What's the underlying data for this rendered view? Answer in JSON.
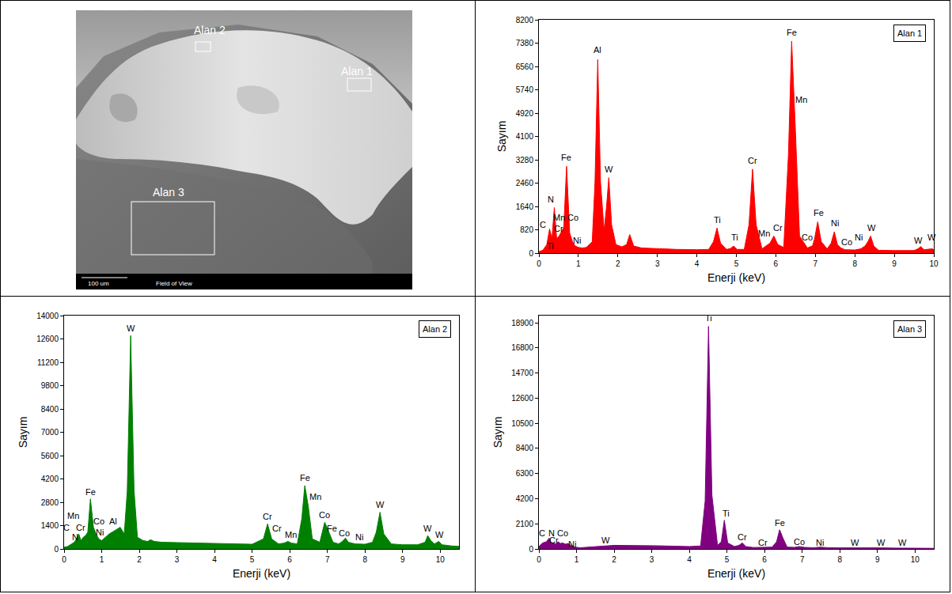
{
  "image_panel": {
    "areas": [
      "Alan 2",
      "Alan 1",
      "Alan 3"
    ],
    "scale_bar": "100 um",
    "caption": "Field of View"
  },
  "chart_data": [
    {
      "type": "area",
      "title": "Alan 1",
      "x_label": "Enerji (keV)",
      "y_label": "Sayım",
      "color": "#ff0000",
      "grid": false,
      "xlim": [
        0,
        10
      ],
      "xticks": [
        0,
        1,
        2,
        3,
        4,
        5,
        6,
        7,
        8,
        9,
        10
      ],
      "ylim": [
        0,
        8200
      ],
      "yticks": [
        0,
        820,
        1640,
        2460,
        3280,
        4100,
        4920,
        5740,
        6560,
        7380,
        8200
      ],
      "x": [
        0,
        0.1,
        0.2,
        0.27,
        0.33,
        0.39,
        0.45,
        0.51,
        0.57,
        0.63,
        0.7,
        0.78,
        0.85,
        0.92,
        1.0,
        1.1,
        1.2,
        1.35,
        1.42,
        1.49,
        1.56,
        1.65,
        1.71,
        1.77,
        1.84,
        1.95,
        2.1,
        2.22,
        2.3,
        2.4,
        2.6,
        3.0,
        3.5,
        4.0,
        4.3,
        4.42,
        4.51,
        4.6,
        4.75,
        4.85,
        4.93,
        5.02,
        5.2,
        5.32,
        5.41,
        5.5,
        5.65,
        5.85,
        5.95,
        6.05,
        6.2,
        6.32,
        6.4,
        6.49,
        6.6,
        6.8,
        6.93,
        6.98,
        7.06,
        7.15,
        7.3,
        7.4,
        7.48,
        7.56,
        7.65,
        7.75,
        8.0,
        8.15,
        8.26,
        8.33,
        8.4,
        8.48,
        8.6,
        9.0,
        9.5,
        9.6,
        9.67,
        9.75,
        9.9,
        9.96,
        10.0
      ],
      "values": [
        50,
        100,
        300,
        850,
        500,
        1600,
        500,
        600,
        750,
        900,
        3050,
        700,
        400,
        250,
        200,
        180,
        200,
        400,
        2500,
        6800,
        2500,
        800,
        1600,
        2650,
        1000,
        300,
        220,
        300,
        650,
        250,
        180,
        150,
        130,
        120,
        130,
        400,
        880,
        350,
        130,
        160,
        250,
        130,
        130,
        1000,
        2950,
        1000,
        150,
        350,
        600,
        300,
        200,
        3500,
        7450,
        4500,
        600,
        180,
        260,
        500,
        1100,
        400,
        150,
        350,
        750,
        300,
        180,
        120,
        110,
        150,
        250,
        400,
        600,
        250,
        100,
        90,
        90,
        150,
        230,
        120,
        130,
        150,
        120
      ],
      "annotations": [
        {
          "text": "C",
          "x": 0.1,
          "y": 1000
        },
        {
          "text": "N",
          "x": 0.3,
          "y": 1900
        },
        {
          "text": "Ti",
          "x": 0.3,
          "y": 250
        },
        {
          "text": "Mn",
          "x": 0.52,
          "y": 1250
        },
        {
          "text": "Cr",
          "x": 0.5,
          "y": 850
        },
        {
          "text": "Co",
          "x": 0.86,
          "y": 1250
        },
        {
          "text": "Ni",
          "x": 0.97,
          "y": 450
        },
        {
          "text": "Fe",
          "x": 0.7,
          "y": 3350
        },
        {
          "text": "Al",
          "x": 1.49,
          "y": 7150
        },
        {
          "text": "W",
          "x": 1.77,
          "y": 2950
        },
        {
          "text": "Ti",
          "x": 4.51,
          "y": 1180
        },
        {
          "text": "Ti",
          "x": 4.95,
          "y": 550
        },
        {
          "text": "Cr",
          "x": 5.41,
          "y": 3250
        },
        {
          "text": "Mn",
          "x": 5.7,
          "y": 700
        },
        {
          "text": "Cr",
          "x": 6.05,
          "y": 900
        },
        {
          "text": "Fe",
          "x": 6.4,
          "y": 7750
        },
        {
          "text": "Mn",
          "x": 6.64,
          "y": 5400
        },
        {
          "text": "Fe",
          "x": 7.08,
          "y": 1420
        },
        {
          "text": "Co",
          "x": 6.8,
          "y": 550
        },
        {
          "text": "Ni",
          "x": 7.5,
          "y": 1050
        },
        {
          "text": "Co",
          "x": 7.8,
          "y": 380
        },
        {
          "text": "Ni",
          "x": 8.1,
          "y": 550
        },
        {
          "text": "W",
          "x": 8.42,
          "y": 900
        },
        {
          "text": "W",
          "x": 9.6,
          "y": 450
        },
        {
          "text": "W",
          "x": 9.95,
          "y": 550
        }
      ]
    },
    {
      "type": "area",
      "title": "Alan 2",
      "x_label": "Enerji (keV)",
      "y_label": "Sayım",
      "color": "#008000",
      "grid": false,
      "xlim": [
        0,
        10.5
      ],
      "xticks": [
        0,
        1,
        2,
        3,
        4,
        5,
        6,
        7,
        8,
        9,
        10
      ],
      "ylim": [
        0,
        14000
      ],
      "yticks": [
        0,
        1400,
        2800,
        4200,
        5600,
        7000,
        8400,
        9800,
        11200,
        12600,
        14000
      ],
      "x": [
        0,
        0.1,
        0.2,
        0.27,
        0.33,
        0.39,
        0.45,
        0.51,
        0.57,
        0.63,
        0.7,
        0.78,
        0.85,
        0.92,
        1.0,
        1.1,
        1.2,
        1.35,
        1.49,
        1.6,
        1.68,
        1.77,
        1.86,
        1.95,
        2.1,
        2.22,
        2.3,
        2.4,
        2.6,
        3.0,
        3.5,
        4.0,
        4.5,
        5.0,
        5.3,
        5.41,
        5.52,
        5.7,
        5.85,
        5.95,
        6.05,
        6.2,
        6.32,
        6.4,
        6.49,
        6.6,
        6.8,
        6.93,
        7.06,
        7.15,
        7.3,
        7.4,
        7.48,
        7.56,
        7.65,
        7.75,
        8.0,
        8.2,
        8.3,
        8.4,
        8.5,
        8.7,
        9.0,
        9.4,
        9.6,
        9.67,
        9.75,
        9.85,
        9.96,
        10.05,
        10.3,
        10.5
      ],
      "values": [
        100,
        150,
        300,
        400,
        600,
        900,
        500,
        700,
        800,
        1000,
        3000,
        1300,
        900,
        600,
        500,
        700,
        900,
        1100,
        1300,
        900,
        3500,
        12800,
        3500,
        700,
        500,
        450,
        550,
        450,
        400,
        380,
        350,
        330,
        300,
        280,
        600,
        1500,
        600,
        300,
        350,
        450,
        350,
        300,
        1800,
        3800,
        2600,
        600,
        400,
        1600,
        900,
        400,
        300,
        450,
        650,
        400,
        350,
        300,
        280,
        400,
        1000,
        2200,
        900,
        300,
        250,
        250,
        400,
        800,
        500,
        300,
        450,
        250,
        180,
        150
      ],
      "annotations": [
        {
          "text": "C",
          "x": 0.06,
          "y": 1300
        },
        {
          "text": "Mn",
          "x": 0.25,
          "y": 2000
        },
        {
          "text": "Cr",
          "x": 0.44,
          "y": 1300
        },
        {
          "text": "N",
          "x": 0.3,
          "y": 700
        },
        {
          "text": "Fe",
          "x": 0.7,
          "y": 3400
        },
        {
          "text": "Co",
          "x": 0.93,
          "y": 1650
        },
        {
          "text": "Ni",
          "x": 0.95,
          "y": 1000
        },
        {
          "text": "Al",
          "x": 1.3,
          "y": 1650
        },
        {
          "text": "W",
          "x": 1.77,
          "y": 13250
        },
        {
          "text": "Cr",
          "x": 5.41,
          "y": 1950
        },
        {
          "text": "Cr",
          "x": 5.65,
          "y": 1250
        },
        {
          "text": "Mn",
          "x": 6.02,
          "y": 850
        },
        {
          "text": "Fe",
          "x": 6.4,
          "y": 4250
        },
        {
          "text": "Mn",
          "x": 6.68,
          "y": 3150
        },
        {
          "text": "Co",
          "x": 6.93,
          "y": 2050
        },
        {
          "text": "Fe",
          "x": 7.12,
          "y": 1250
        },
        {
          "text": "Co",
          "x": 7.45,
          "y": 950
        },
        {
          "text": "Ni",
          "x": 7.85,
          "y": 700
        },
        {
          "text": "W",
          "x": 8.4,
          "y": 2650
        },
        {
          "text": "W",
          "x": 9.67,
          "y": 1250
        },
        {
          "text": "W",
          "x": 9.98,
          "y": 850
        }
      ]
    },
    {
      "type": "area",
      "title": "Alan 3",
      "x_label": "Enerji (keV)",
      "y_label": "Sayım",
      "color": "#800080",
      "grid": false,
      "xlim": [
        0,
        10.5
      ],
      "xticks": [
        0,
        1,
        2,
        3,
        4,
        5,
        6,
        7,
        8,
        9,
        10
      ],
      "ylim": [
        0,
        19500
      ],
      "yticks": [
        0,
        2100,
        4200,
        6300,
        8400,
        10500,
        12600,
        14700,
        16800,
        18900
      ],
      "x": [
        0,
        0.1,
        0.2,
        0.27,
        0.33,
        0.39,
        0.45,
        0.51,
        0.57,
        0.63,
        0.7,
        0.78,
        0.85,
        0.95,
        1.1,
        1.3,
        1.6,
        1.77,
        2.0,
        2.4,
        2.8,
        3.2,
        3.6,
        4.0,
        4.3,
        4.42,
        4.51,
        4.6,
        4.75,
        4.85,
        4.93,
        5.02,
        5.2,
        5.32,
        5.41,
        5.5,
        5.7,
        5.95,
        6.2,
        6.32,
        6.4,
        6.49,
        6.6,
        6.8,
        6.93,
        7.06,
        7.3,
        7.48,
        7.7,
        8.0,
        8.4,
        8.8,
        9.1,
        9.5,
        9.67,
        10.0,
        10.5
      ],
      "values": [
        200,
        500,
        600,
        900,
        500,
        500,
        400,
        600,
        450,
        500,
        400,
        450,
        300,
        150,
        100,
        150,
        250,
        250,
        300,
        300,
        300,
        260,
        230,
        200,
        250,
        4000,
        18600,
        4500,
        300,
        600,
        2400,
        500,
        200,
        300,
        500,
        200,
        120,
        150,
        150,
        600,
        1600,
        900,
        150,
        130,
        200,
        130,
        100,
        150,
        100,
        90,
        100,
        80,
        90,
        70,
        80,
        60,
        50
      ],
      "annotations": [
        {
          "text": "C",
          "x": 0.08,
          "y": 1350
        },
        {
          "text": "N",
          "x": 0.33,
          "y": 1350
        },
        {
          "text": "Cr",
          "x": 0.4,
          "y": 700
        },
        {
          "text": "Co",
          "x": 0.64,
          "y": 1350
        },
        {
          "text": "Ni",
          "x": 0.88,
          "y": 400
        },
        {
          "text": "W",
          "x": 1.77,
          "y": 700
        },
        {
          "text": "Ti",
          "x": 4.51,
          "y": 19300
        },
        {
          "text": "Ti",
          "x": 4.97,
          "y": 3000
        },
        {
          "text": "Cr",
          "x": 5.41,
          "y": 1000
        },
        {
          "text": "Cr",
          "x": 5.95,
          "y": 550
        },
        {
          "text": "Fe",
          "x": 6.4,
          "y": 2200
        },
        {
          "text": "Co",
          "x": 6.93,
          "y": 600
        },
        {
          "text": "Ni",
          "x": 7.48,
          "y": 550
        },
        {
          "text": "W",
          "x": 8.4,
          "y": 500
        },
        {
          "text": "W",
          "x": 9.1,
          "y": 500
        },
        {
          "text": "W",
          "x": 9.67,
          "y": 500
        }
      ]
    }
  ]
}
